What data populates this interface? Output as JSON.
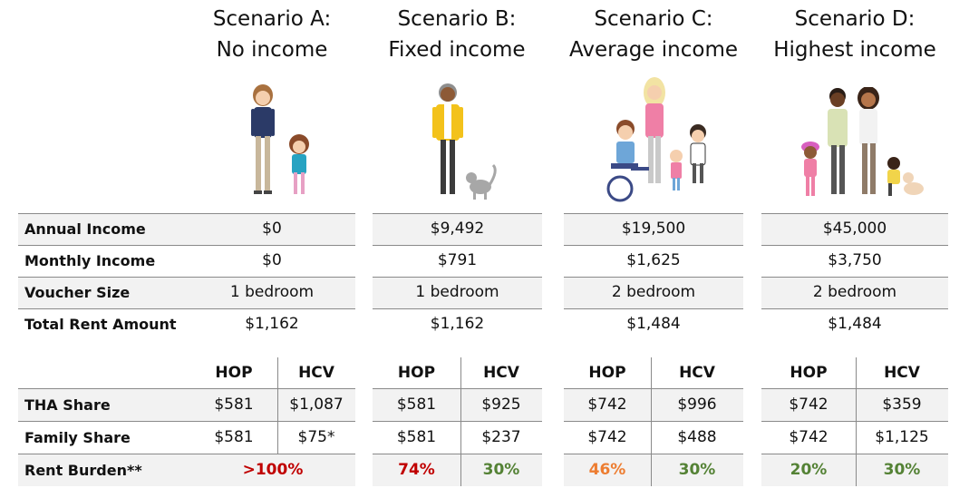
{
  "colors": {
    "red": "#c00000",
    "green": "#548235",
    "orange": "#ed7d31",
    "row_shade": "#f2f2f2",
    "rule": "#8a8a8a"
  },
  "scenarios": [
    {
      "title_line1": "Scenario A:",
      "title_line2": "No income",
      "annual_income": "$0",
      "monthly_income": "$0",
      "voucher_size": "1 bedroom",
      "total_rent": "$1,162",
      "tha_hop": "$581",
      "tha_hcv": "$1,087",
      "family_hop": "$581",
      "family_hcv": "$75*",
      "burden_merged": ">100%"
    },
    {
      "title_line1": "Scenario B:",
      "title_line2": "Fixed income",
      "annual_income": "$9,492",
      "monthly_income": "$791",
      "voucher_size": "1 bedroom",
      "total_rent": "$1,162",
      "tha_hop": "$581",
      "tha_hcv": "$925",
      "family_hop": "$581",
      "family_hcv": "$237",
      "burden_hop": "74%",
      "burden_hcv": "30%"
    },
    {
      "title_line1": "Scenario C:",
      "title_line2": "Average income",
      "annual_income": "$19,500",
      "monthly_income": "$1,625",
      "voucher_size": "2 bedroom",
      "total_rent": "$1,484",
      "tha_hop": "$742",
      "tha_hcv": "$996",
      "family_hop": "$742",
      "family_hcv": "$488",
      "burden_hop": "46%",
      "burden_hcv": "30%"
    },
    {
      "title_line1": "Scenario D:",
      "title_line2": "Highest income",
      "annual_income": "$45,000",
      "monthly_income": "$3,750",
      "voucher_size": "2 bedroom",
      "total_rent": "$1,484",
      "tha_hop": "$742",
      "tha_hcv": "$359",
      "family_hop": "$742",
      "family_hcv": "$1,125",
      "burden_hop": "20%",
      "burden_hcv": "30%"
    }
  ],
  "labels": {
    "annual_income": "Annual Income",
    "monthly_income": "Monthly Income",
    "voucher_size": "Voucher Size",
    "total_rent": "Total Rent Amount",
    "tha_share": "THA Share",
    "family_share": "Family Share",
    "rent_burden": "Rent Burden**"
  },
  "program_headers": {
    "hop": "HOP",
    "hcv": "HCV"
  },
  "illustrations": [
    "mother-and-daughter-figure",
    "elderly-man-with-cat-figure",
    "mother-with-three-children-wheelchair-figure",
    "two-parents-three-children-dog-figure"
  ]
}
